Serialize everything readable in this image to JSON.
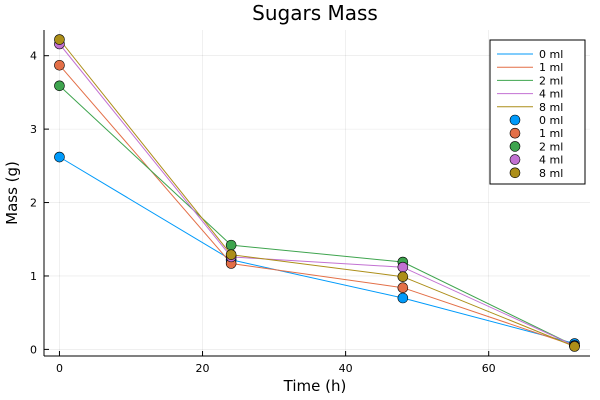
{
  "chart_data": {
    "type": "line",
    "title": "Sugars Mass",
    "xlabel": "Time (h)",
    "ylabel": "Mass (g)",
    "x": [
      0,
      24,
      48,
      72
    ],
    "xlim": [
      -2.16,
      74.16
    ],
    "ylim": [
      -0.09,
      4.35
    ],
    "xticks": [
      0,
      20,
      40,
      60
    ],
    "yticks": [
      0,
      1,
      2,
      3,
      4
    ],
    "grid": true,
    "legend_position": "top-right",
    "series": [
      {
        "name": "0 ml",
        "color": "#009AFA",
        "values": [
          2.62,
          1.22,
          0.7,
          0.08
        ]
      },
      {
        "name": "1 ml",
        "color": "#E36F47",
        "values": [
          3.87,
          1.17,
          0.84,
          0.05
        ]
      },
      {
        "name": "2 ml",
        "color": "#3EA44E",
        "values": [
          3.59,
          1.42,
          1.19,
          0.05
        ]
      },
      {
        "name": "4 ml",
        "color": "#C271D2",
        "values": [
          4.16,
          1.26,
          1.12,
          0.05
        ]
      },
      {
        "name": "8 ml",
        "color": "#AC8E18",
        "values": [
          4.22,
          1.29,
          0.99,
          0.04
        ]
      }
    ]
  }
}
